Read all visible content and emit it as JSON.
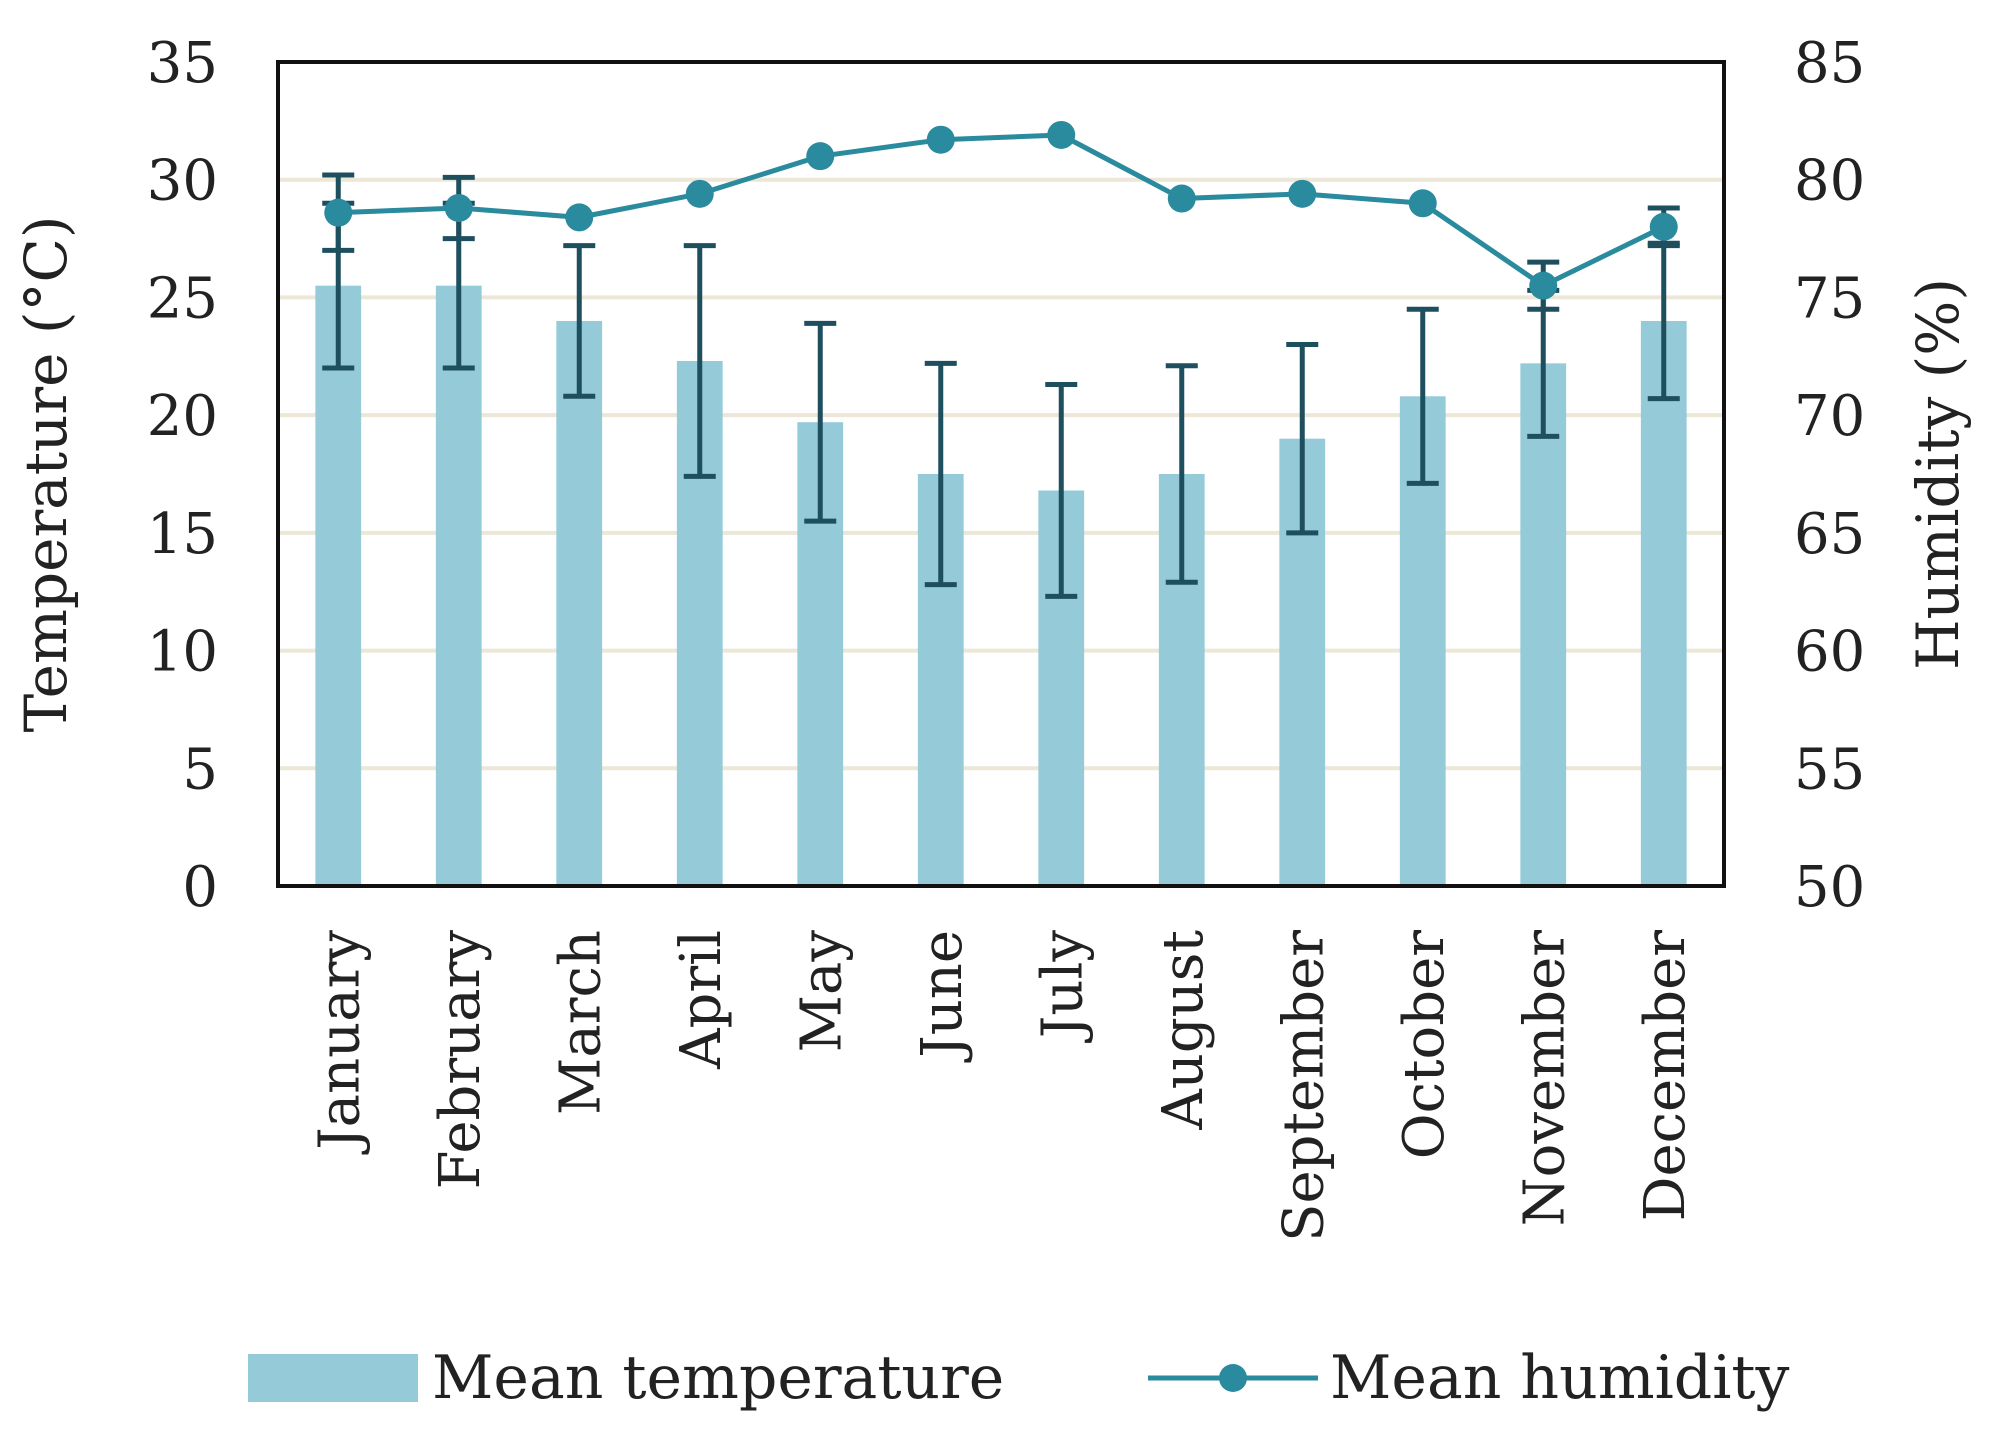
{
  "chart_data": {
    "type": "bar+line",
    "categories": [
      "January",
      "February",
      "March",
      "April",
      "May",
      "June",
      "July",
      "August",
      "September",
      "October",
      "November",
      "December"
    ],
    "series": [
      {
        "name": "Mean temperature",
        "type": "bar",
        "axis": "left",
        "values": [
          25.5,
          25.5,
          24.0,
          22.3,
          19.7,
          17.5,
          16.8,
          17.5,
          19.0,
          20.8,
          22.2,
          24.0
        ],
        "error": [
          3.5,
          3.5,
          3.2,
          4.9,
          4.2,
          4.7,
          4.5,
          4.6,
          4.0,
          3.7,
          3.1,
          3.3
        ]
      },
      {
        "name": "Mean humidity",
        "type": "line",
        "axis": "right",
        "values": [
          78.6,
          78.8,
          78.4,
          79.4,
          81.0,
          81.7,
          81.9,
          79.2,
          79.4,
          79.0,
          75.5,
          78.0
        ],
        "error": [
          1.6,
          1.3,
          0,
          0,
          0,
          0,
          0,
          0,
          0,
          0,
          1.0,
          0.8
        ]
      }
    ],
    "ylabel": "Temperature (°C)",
    "y2label": "Humidity (%)",
    "ylim": [
      0,
      35
    ],
    "yticks": [
      0,
      5,
      10,
      15,
      20,
      25,
      30,
      35
    ],
    "y2lim": [
      50,
      85
    ],
    "y2ticks": [
      50,
      55,
      60,
      65,
      70,
      75,
      80,
      85
    ],
    "grid": true,
    "legend_position": "bottom",
    "colors": {
      "bar": "#95cad9",
      "line": "#2a8a9e",
      "error": "#1d4f5e",
      "grid": "#ece7d6",
      "axis": "#111111"
    }
  }
}
